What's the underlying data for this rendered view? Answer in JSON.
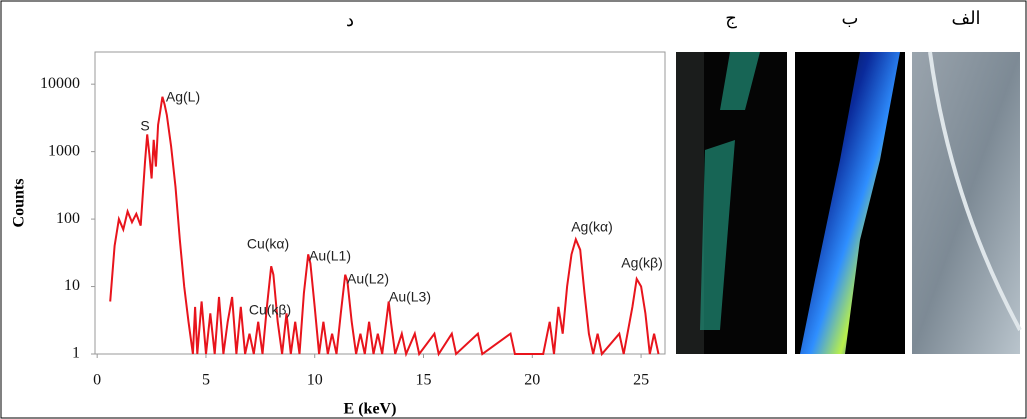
{
  "chart_data": {
    "type": "line",
    "title": "د",
    "x_label": "E (keV)",
    "y_label": "Counts",
    "log_y": true,
    "ylim": [
      1,
      30000
    ],
    "yticks": [
      1,
      10,
      100,
      1000,
      10000
    ],
    "xlim": [
      -0.1,
      26.1
    ],
    "xticks": [
      0,
      5,
      10,
      15,
      20,
      25
    ],
    "grid": false,
    "x": [
      0.6,
      0.8,
      1.0,
      1.2,
      1.4,
      1.6,
      1.8,
      2.0,
      2.2,
      2.3,
      2.4,
      2.5,
      2.6,
      2.7,
      2.8,
      2.9,
      3.0,
      3.1,
      3.2,
      3.4,
      3.6,
      3.8,
      4.0,
      4.2,
      4.4,
      4.5,
      4.6,
      4.8,
      5.0,
      5.2,
      5.4,
      5.6,
      5.8,
      6.0,
      6.2,
      6.4,
      6.6,
      6.8,
      7.0,
      7.2,
      7.4,
      7.6,
      7.8,
      8.0,
      8.1,
      8.3,
      8.5,
      8.7,
      8.9,
      9.1,
      9.3,
      9.5,
      9.7,
      9.8,
      10.0,
      10.2,
      10.4,
      10.6,
      10.8,
      11.0,
      11.2,
      11.4,
      11.5,
      11.7,
      11.9,
      12.1,
      12.3,
      12.5,
      12.7,
      12.9,
      13.1,
      13.4,
      13.5,
      13.7,
      14.0,
      14.2,
      14.6,
      14.8,
      15.5,
      15.7,
      16.3,
      16.5,
      17.5,
      17.7,
      19.0,
      19.2,
      20.5,
      20.8,
      21.0,
      21.2,
      21.4,
      21.6,
      21.8,
      22.0,
      22.2,
      22.4,
      22.6,
      22.8,
      23.0,
      23.2,
      24.0,
      24.2,
      24.6,
      24.8,
      25.0,
      25.2,
      25.4,
      25.6,
      25.8
    ],
    "series": [
      {
        "color": "#e8141c",
        "values": [
          6,
          40,
          100,
          70,
          130,
          90,
          120,
          80,
          700,
          1800,
          900,
          400,
          1500,
          600,
          2500,
          4000,
          6500,
          5000,
          3500,
          1200,
          300,
          50,
          10,
          3,
          1,
          5,
          1,
          6,
          1,
          4,
          1,
          7,
          1,
          3,
          7,
          1,
          5,
          1,
          2,
          1,
          3,
          1,
          5,
          20,
          15,
          3,
          1,
          4,
          1,
          3,
          1,
          8,
          30,
          22,
          5,
          1,
          3,
          1,
          2,
          1,
          4,
          15,
          12,
          3,
          1,
          2,
          1,
          3,
          1,
          2,
          1,
          6,
          3,
          1,
          2,
          1,
          2,
          1,
          2,
          1,
          2,
          1,
          2,
          1,
          2,
          1,
          1,
          3,
          1,
          5,
          2,
          10,
          30,
          50,
          35,
          8,
          2,
          1,
          2,
          1,
          2,
          1,
          5,
          13,
          10,
          4,
          1,
          2,
          1
        ]
      }
    ],
    "annotations": [
      "S",
      "Ag(L)",
      "Cu(kα)",
      "Cu(kβ)",
      "Au(L1)",
      "Au(L2)",
      "Au(L3)",
      "Ag(kα)",
      "Ag(kβ)"
    ]
  },
  "images": [
    {
      "label": "ج"
    },
    {
      "label": "ب"
    },
    {
      "label": "الف"
    }
  ]
}
